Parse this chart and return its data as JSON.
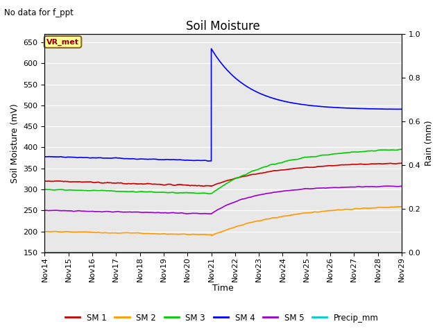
{
  "title": "Soil Moisture",
  "subtitle": "No data for f_ppt",
  "xlabel": "Time",
  "ylabel_left": "Soil Moisture (mV)",
  "ylabel_right": "Rain (mm)",
  "ylim_left": [
    150,
    670
  ],
  "ylim_right": [
    0.0,
    1.0
  ],
  "yticks_left": [
    150,
    200,
    250,
    300,
    350,
    400,
    450,
    500,
    550,
    600,
    650
  ],
  "yticks_right": [
    0.0,
    0.2,
    0.4,
    0.6,
    0.8,
    1.0
  ],
  "bg_color": "#e8e8e8",
  "fig_color": "#ffffff",
  "annotation_text": "VR_met",
  "annotation_box_color": "#ffff99",
  "annotation_border_color": "#8b6914",
  "colors": {
    "SM1": "#cc0000",
    "SM2": "#ff9900",
    "SM3": "#00cc00",
    "SM4": "#0000ff",
    "SM5": "#9900cc",
    "Precip": "#00cccc"
  },
  "legend_labels": [
    "SM 1",
    "SM 2",
    "SM 3",
    "SM 4",
    "SM 5",
    "Precip_mm"
  ],
  "xtick_labels": [
    "Nov 14",
    "Nov 15",
    "Nov 16",
    "Nov 17",
    "Nov 18",
    "Nov 19",
    "Nov 20",
    "Nov 21",
    "Nov 22",
    "Nov 23",
    "Nov 24",
    "Nov 25",
    "Nov 26",
    "Nov 27",
    "Nov 28",
    "Nov 29"
  ]
}
